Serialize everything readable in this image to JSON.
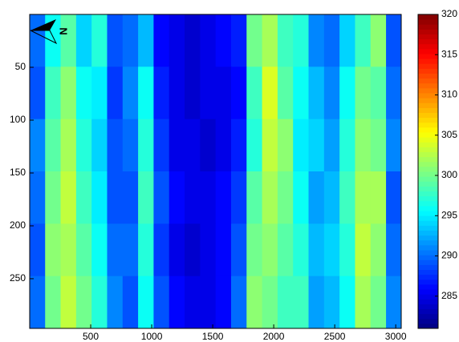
{
  "chart_data": {
    "type": "heatmap",
    "colormap": "jet",
    "x": [
      63,
      190,
      317,
      444,
      571,
      698,
      825,
      952,
      1079,
      1206,
      1333,
      1460,
      1587,
      1714,
      1841,
      1968,
      2095,
      2222,
      2349,
      2476,
      2603,
      2730,
      2857,
      2984
    ],
    "y": [
      25,
      74,
      124,
      173,
      223,
      272
    ],
    "z": [
      [
        290,
        296,
        299,
        294,
        297,
        289,
        290,
        293,
        286,
        285,
        284,
        285,
        286,
        287,
        300,
        302,
        298,
        297,
        291,
        290,
        294,
        298,
        301,
        289
      ],
      [
        289,
        298,
        301,
        296,
        295,
        288,
        291,
        296,
        287,
        285,
        284,
        285,
        285,
        286,
        298,
        304,
        299,
        296,
        293,
        291,
        296,
        300,
        299,
        290
      ],
      [
        291,
        299,
        302,
        297,
        294,
        289,
        290,
        297,
        288,
        285,
        285,
        284,
        285,
        287,
        297,
        303,
        301,
        295,
        294,
        292,
        297,
        301,
        300,
        291
      ],
      [
        290,
        300,
        303,
        298,
        295,
        289,
        289,
        298,
        289,
        286,
        285,
        285,
        286,
        288,
        299,
        302,
        300,
        296,
        292,
        293,
        298,
        302,
        302,
        289
      ],
      [
        289,
        301,
        302,
        299,
        296,
        290,
        290,
        297,
        288,
        285,
        284,
        285,
        286,
        289,
        300,
        301,
        299,
        297,
        293,
        294,
        297,
        303,
        301,
        290
      ],
      [
        290,
        300,
        303,
        300,
        297,
        291,
        289,
        296,
        289,
        286,
        285,
        285,
        286,
        290,
        301,
        300,
        298,
        298,
        292,
        293,
        296,
        302,
        300,
        291
      ]
    ],
    "xlim": [
      0,
      3045
    ],
    "xticks": [
      500,
      1000,
      1500,
      2000,
      2500,
      3000
    ],
    "ylim": [
      0,
      297
    ],
    "yticks": [
      50,
      100,
      150,
      200,
      250
    ],
    "y_reversed": true,
    "clim": [
      281,
      320
    ],
    "cticks": [
      285,
      290,
      295,
      300,
      305,
      310,
      315,
      320
    ],
    "annotation": "N"
  }
}
